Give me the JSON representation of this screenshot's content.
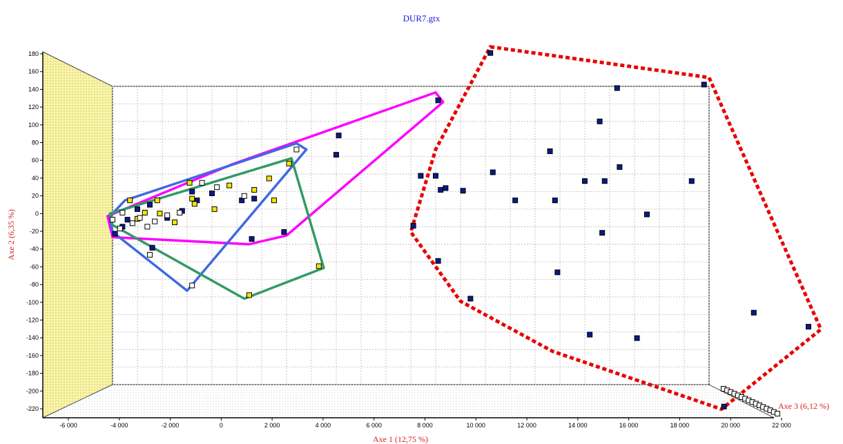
{
  "title": "DUR7.gtx",
  "chart_data": {
    "type": "scatter",
    "title": "DUR7.gtx",
    "xlabel": "Axe 1 (12,75 %)",
    "ylabel": "Axe 2 (6,35 %)",
    "zlabel": "Axe 3 (6,12 %)",
    "xlim": [
      -7000,
      22000
    ],
    "ylim": [
      -220,
      180
    ],
    "x_ticks": [
      "-6 000",
      "-4 000",
      "-2 000",
      "0",
      "2 000",
      "4 000",
      "6 000",
      "8 000",
      "10 000",
      "12 000",
      "14 000",
      "16 000",
      "18 000",
      "20 000",
      "22 000"
    ],
    "y_ticks": [
      "180",
      "160",
      "140",
      "120",
      "100",
      "80",
      "60",
      "40",
      "20",
      "0",
      "-20",
      "-40",
      "-60",
      "-80",
      "-100",
      "-120",
      "-140",
      "-160",
      "-180",
      "-200",
      "-220"
    ],
    "grid": true,
    "series": [
      {
        "color": "#0a1a8c",
        "points": [
          [
            7100,
            124
          ],
          [
            9200,
            178
          ],
          [
            17800,
            142
          ],
          [
            14300,
            138
          ],
          [
            13600,
            100
          ],
          [
            14400,
            48
          ],
          [
            11600,
            66
          ],
          [
            9300,
            42
          ],
          [
            6400,
            38
          ],
          [
            7000,
            38
          ],
          [
            7200,
            22
          ],
          [
            7400,
            24
          ],
          [
            8100,
            21
          ],
          [
            13000,
            32
          ],
          [
            13800,
            32
          ],
          [
            17300,
            32
          ],
          [
            10200,
            10
          ],
          [
            11800,
            10
          ],
          [
            15500,
            -6
          ],
          [
            6100,
            -19
          ],
          [
            13700,
            -27
          ],
          [
            7100,
            -59
          ],
          [
            11900,
            -72
          ],
          [
            8400,
            -102
          ],
          [
            19800,
            -118
          ],
          [
            22000,
            -134
          ],
          [
            15100,
            -147
          ],
          [
            13200,
            -143
          ],
          [
            18600,
            -225
          ],
          [
            3100,
            84
          ],
          [
            3000,
            62
          ],
          [
            -2000,
            18
          ],
          [
            -800,
            10
          ],
          [
            -300,
            12
          ],
          [
            -2800,
            20
          ],
          [
            -400,
            -34
          ],
          [
            900,
            -26
          ],
          [
            -5900,
            -28
          ],
          [
            -4400,
            -44
          ],
          [
            -5000,
            0
          ],
          [
            -4500,
            5
          ],
          [
            -3200,
            -2
          ],
          [
            -3800,
            -10
          ],
          [
            -5400,
            -12
          ],
          [
            -5600,
            -20
          ],
          [
            -2600,
            10
          ]
        ]
      },
      {
        "color": "#f2e600",
        "points": [
          [
            1100,
            52
          ],
          [
            300,
            35
          ],
          [
            -1300,
            27
          ],
          [
            -300,
            22
          ],
          [
            500,
            10
          ],
          [
            2300,
            -65
          ],
          [
            -500,
            -98
          ],
          [
            -2900,
            30
          ],
          [
            -2800,
            12
          ],
          [
            -2700,
            6
          ],
          [
            -1900,
            0
          ],
          [
            -4100,
            -5
          ],
          [
            -3500,
            -15
          ],
          [
            -4700,
            -4
          ],
          [
            -5000,
            -11
          ],
          [
            -5300,
            10
          ],
          [
            -4200,
            10
          ]
        ]
      },
      {
        "color": "#ffffff",
        "points": [
          [
            1400,
            68
          ],
          [
            -1800,
            25
          ],
          [
            -2400,
            30
          ],
          [
            -700,
            15
          ],
          [
            -2800,
            -87
          ],
          [
            -4500,
            -52
          ],
          [
            -5600,
            -4
          ],
          [
            -5200,
            -16
          ],
          [
            -4900,
            -10
          ],
          [
            -4300,
            -14
          ],
          [
            -3800,
            -7
          ],
          [
            -3300,
            -4
          ],
          [
            -5700,
            -22
          ],
          [
            -6000,
            -12
          ],
          [
            -4600,
            -20
          ]
        ]
      }
    ],
    "hulls": [
      {
        "color": "#ff00ff",
        "points": [
          [
            -6200,
            -8
          ],
          [
            -6000,
            -32
          ],
          [
            -500,
            -40
          ],
          [
            1000,
            -30
          ],
          [
            7300,
            122
          ],
          [
            7000,
            133
          ],
          [
            -1200,
            51
          ]
        ]
      },
      {
        "color": "#4169e1",
        "points": [
          [
            -6100,
            -8
          ],
          [
            -5500,
            10
          ],
          [
            1400,
            75
          ],
          [
            1800,
            68
          ],
          [
            -3000,
            -93
          ],
          [
            -6000,
            -26
          ]
        ]
      },
      {
        "color": "#339966",
        "points": [
          [
            -6100,
            -5
          ],
          [
            1200,
            58
          ],
          [
            2500,
            -67
          ],
          [
            -700,
            -102
          ],
          [
            -6000,
            -18
          ]
        ]
      },
      {
        "color": "#e80000",
        "points": [
          [
            9200,
            185
          ],
          [
            18000,
            150
          ],
          [
            22500,
            -137
          ],
          [
            18500,
            -228
          ],
          [
            11700,
            -162
          ],
          [
            8000,
            -105
          ],
          [
            6000,
            -26
          ],
          [
            7000,
            68
          ]
        ]
      }
    ]
  }
}
